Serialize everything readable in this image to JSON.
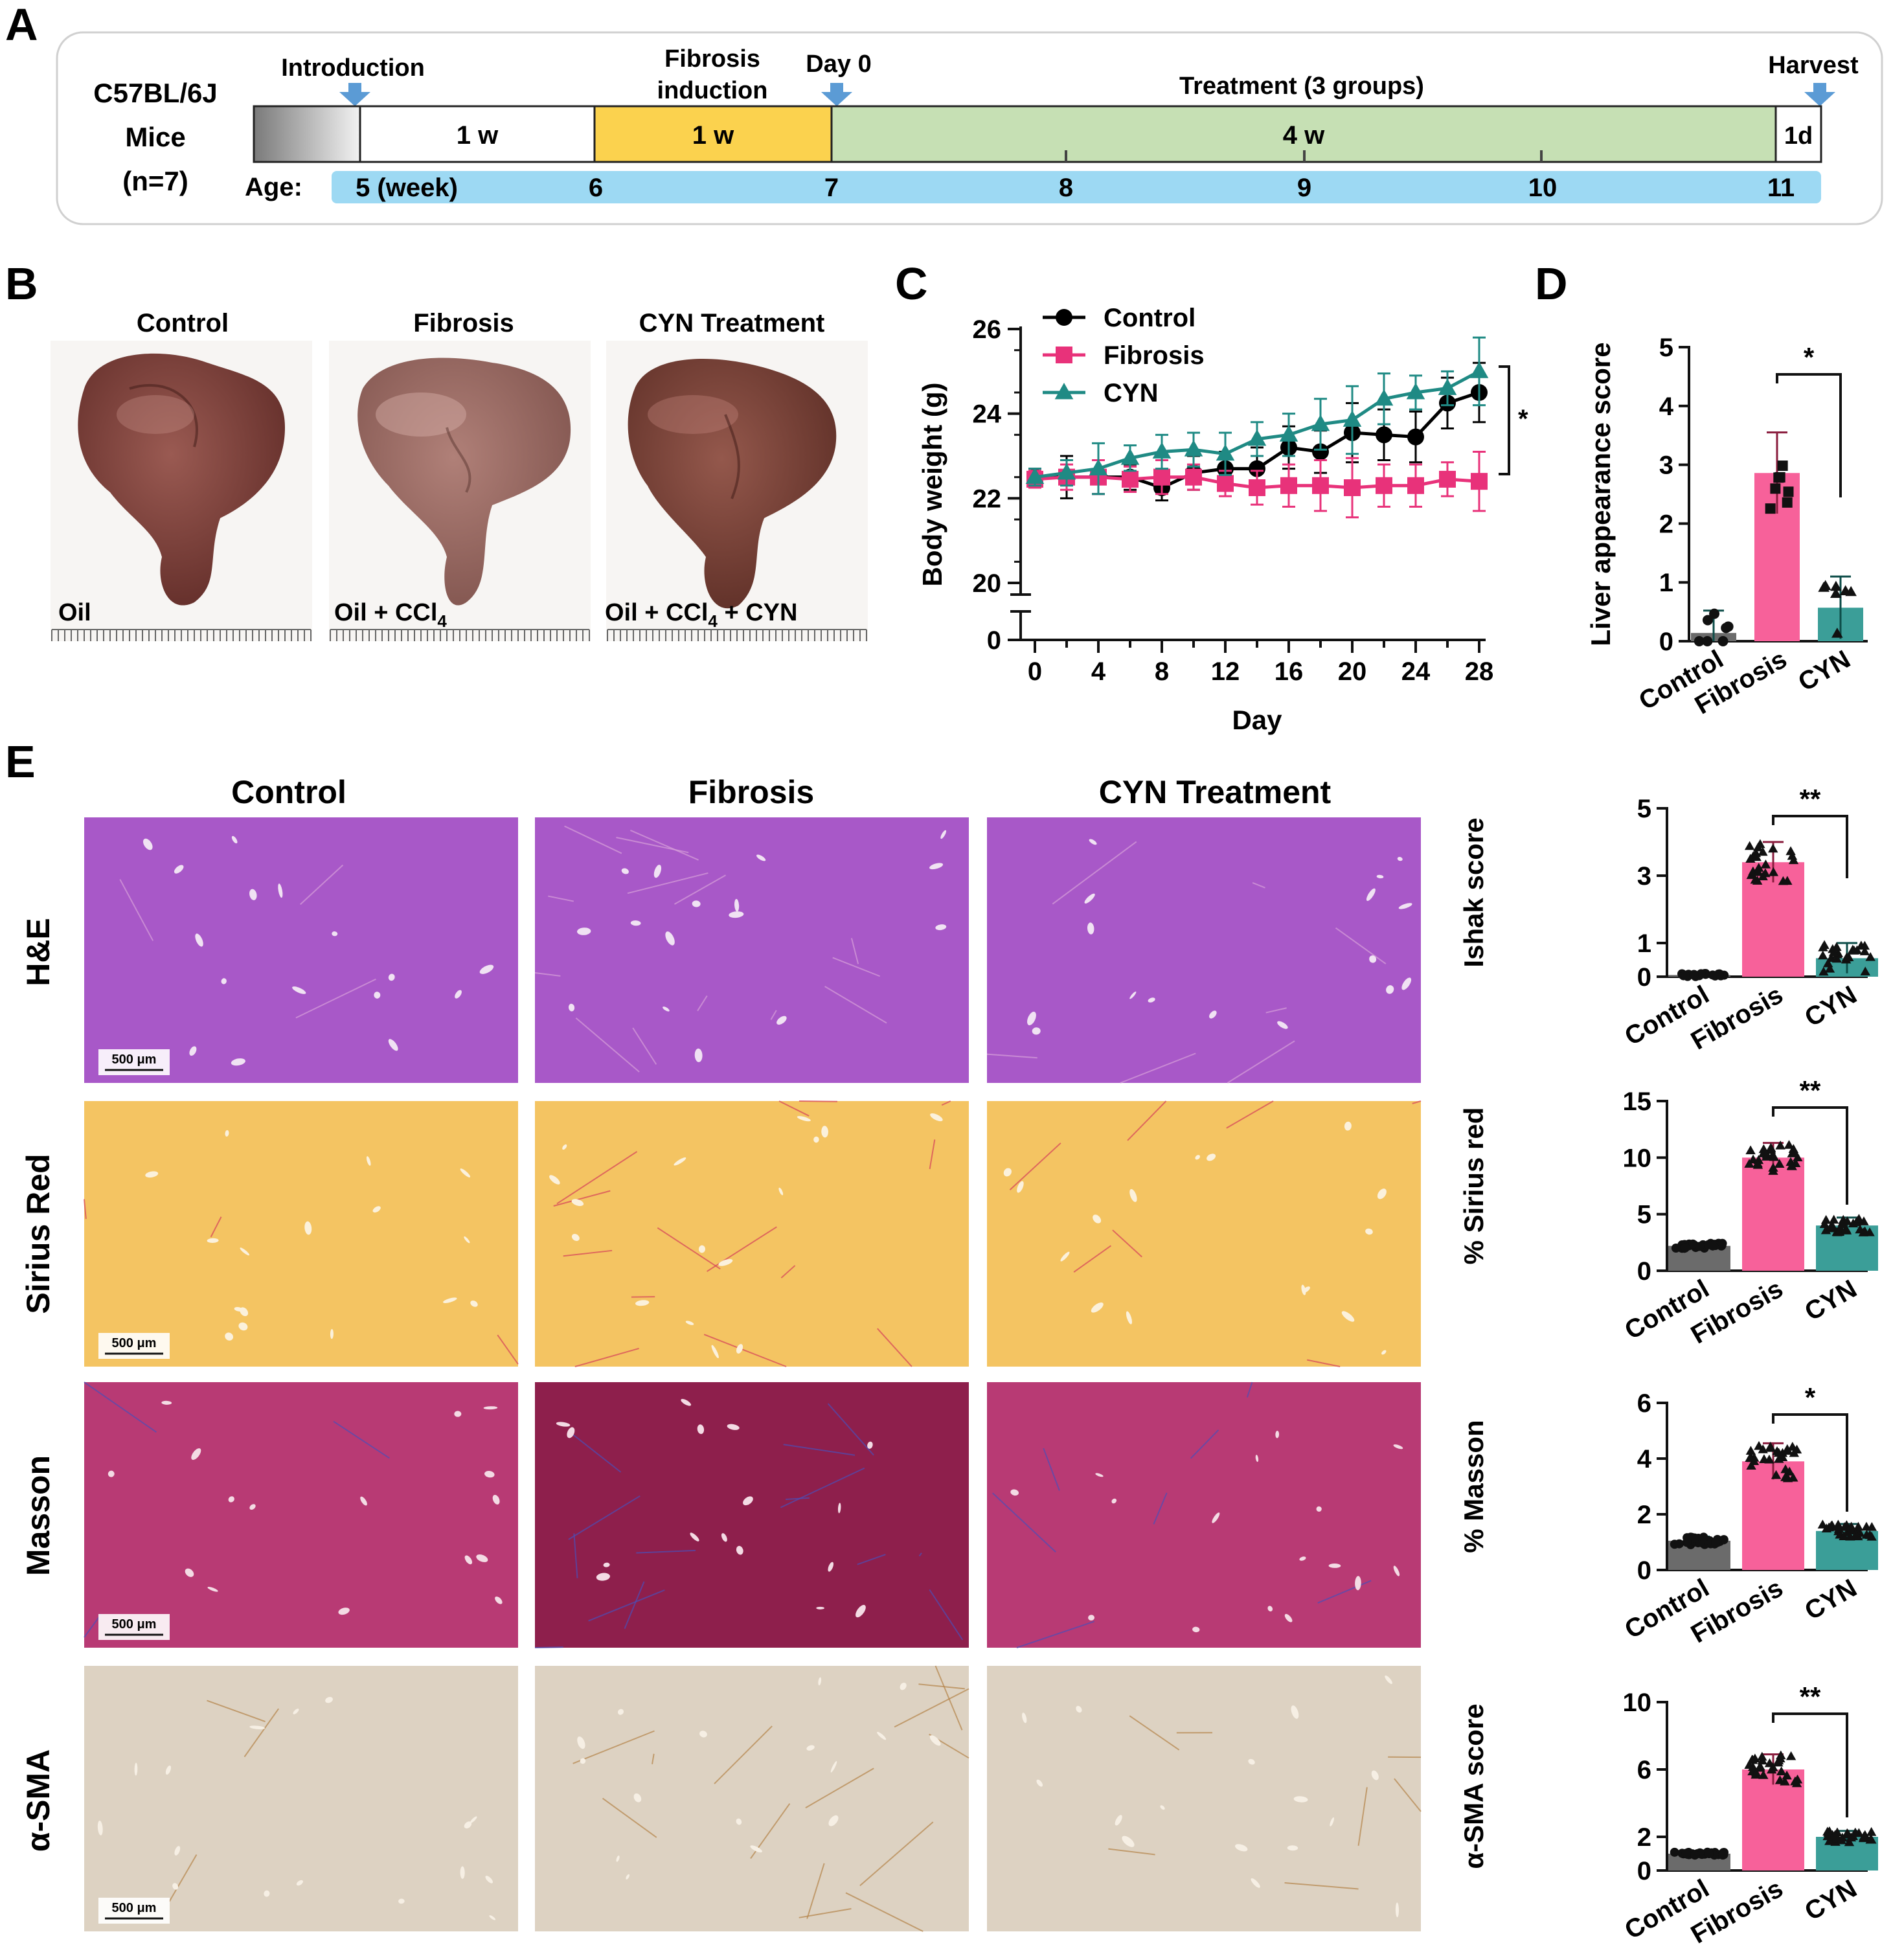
{
  "panels": {
    "a": "A",
    "b": "B",
    "c": "C",
    "d": "D",
    "e": "E"
  },
  "timeline": {
    "strain": "C57BL/6J",
    "mice": "Mice",
    "n": "(n=7)",
    "introduction": "Introduction",
    "fibrosis_l1": "Fibrosis",
    "fibrosis_l2": "induction",
    "day0": "Day 0",
    "treatment": "Treatment (3 groups)",
    "harvest": "Harvest",
    "seg1": "1 w",
    "seg2": "1 w",
    "seg3": "4 w",
    "seg4": "1d",
    "age_label": "Age:",
    "ages": [
      "5 (week)",
      "6",
      "7",
      "8",
      "9",
      "10",
      "11"
    ],
    "colors": {
      "fibrosis": "#fbd24e",
      "treatment": "#c6e0b4",
      "age": "#9dd9f3",
      "arrow": "#5b9bd5"
    }
  },
  "liver_photos": {
    "titles": [
      "Control",
      "Fibrosis",
      "CYN Treatment"
    ],
    "captions": [
      "Oil",
      "Oil + CCl",
      "Oil + CCl"
    ],
    "caption_sub": "4",
    "caption_tail": " + CYN"
  },
  "histology": {
    "columns": [
      "Control",
      "Fibrosis",
      "CYN Treatment"
    ],
    "rows": [
      "H&E",
      "Sirius Red",
      "Masson",
      "α-SMA"
    ],
    "scale_label": "500 μm",
    "colors": {
      "he": "#a858c8",
      "sirius": "#f4c462",
      "masson": "#b83a74",
      "sma": "#ddd2c2"
    }
  },
  "chart_data": [
    {
      "id": "C",
      "type": "line",
      "xlabel": "Day",
      "ylabel": "Body weight (g)",
      "xlim": [
        0,
        28
      ],
      "ylim": [
        20,
        26
      ],
      "x_ticks": [
        0,
        4,
        8,
        12,
        16,
        20,
        24,
        28
      ],
      "y_ticks": [
        20,
        22,
        24,
        26
      ],
      "y_break_label": "0",
      "legend_position": "top-left",
      "annotation": "*",
      "x": [
        0,
        2,
        4,
        6,
        8,
        10,
        12,
        14,
        16,
        18,
        20,
        22,
        24,
        26,
        28
      ],
      "series": [
        {
          "name": "Control",
          "color": "#000000",
          "marker": "circle",
          "values": [
            22.5,
            22.5,
            22.5,
            22.5,
            22.25,
            22.6,
            22.7,
            22.7,
            23.2,
            23.1,
            23.55,
            23.5,
            23.45,
            24.25,
            24.5
          ],
          "errors": [
            0.2,
            0.5,
            0.4,
            0.3,
            0.3,
            0.4,
            0.4,
            0.5,
            0.5,
            0.5,
            0.7,
            0.6,
            0.6,
            0.6,
            0.7
          ]
        },
        {
          "name": "Fibrosis",
          "color": "#e8327a",
          "marker": "square",
          "values": [
            22.45,
            22.5,
            22.5,
            22.45,
            22.5,
            22.5,
            22.35,
            22.25,
            22.3,
            22.3,
            22.25,
            22.3,
            22.3,
            22.45,
            22.4
          ],
          "errors": [
            0.2,
            0.3,
            0.4,
            0.3,
            0.4,
            0.3,
            0.3,
            0.4,
            0.5,
            0.6,
            0.7,
            0.5,
            0.5,
            0.4,
            0.7
          ]
        },
        {
          "name": "CYN",
          "color": "#1f8a84",
          "marker": "triangle",
          "values": [
            22.5,
            22.6,
            22.7,
            22.95,
            23.1,
            23.15,
            23.05,
            23.4,
            23.5,
            23.75,
            23.85,
            24.35,
            24.5,
            24.6,
            25.0
          ],
          "errors": [
            0.2,
            0.3,
            0.6,
            0.3,
            0.4,
            0.4,
            0.5,
            0.4,
            0.5,
            0.6,
            0.8,
            0.6,
            0.4,
            0.4,
            0.8
          ]
        }
      ]
    },
    {
      "id": "D",
      "type": "bar",
      "ylabel": "Liver appearance score",
      "categories": [
        "Control",
        "Fibrosis",
        "CYN"
      ],
      "values": [
        0.14,
        2.86,
        0.57
      ],
      "errors": [
        0.38,
        0.69,
        0.53
      ],
      "ylim": [
        0,
        5
      ],
      "y_ticks": [
        0,
        1,
        2,
        3,
        4,
        5
      ],
      "significance": "*",
      "colors": [
        "#6b6b6b",
        "#f7619a",
        "#3b9e98"
      ]
    },
    {
      "id": "E1",
      "type": "bar",
      "ylabel": "Ishak score",
      "categories": [
        "Control",
        "Fibrosis",
        "CYN"
      ],
      "values": [
        0.05,
        3.4,
        0.55
      ],
      "errors": [
        0.05,
        0.6,
        0.45
      ],
      "ylim": [
        0,
        5
      ],
      "y_ticks": [
        0,
        1,
        3,
        5
      ],
      "significance": "**",
      "colors": [
        "#6b6b6b",
        "#f7619a",
        "#3b9e98"
      ]
    },
    {
      "id": "E2",
      "type": "bar",
      "ylabel": "% Sirius red",
      "categories": [
        "Control",
        "Fibrosis",
        "CYN"
      ],
      "values": [
        2.2,
        10.0,
        4.0
      ],
      "errors": [
        0.25,
        1.3,
        0.7
      ],
      "ylim": [
        0,
        15
      ],
      "y_ticks": [
        0,
        5,
        10,
        15
      ],
      "significance": "**",
      "colors": [
        "#6b6b6b",
        "#f7619a",
        "#3b9e98"
      ]
    },
    {
      "id": "E3",
      "type": "bar",
      "ylabel": "% Masson",
      "categories": [
        "Control",
        "Fibrosis",
        "CYN"
      ],
      "values": [
        1.05,
        3.9,
        1.4
      ],
      "errors": [
        0.15,
        0.65,
        0.25
      ],
      "ylim": [
        0,
        6
      ],
      "y_ticks": [
        0,
        2,
        4,
        6
      ],
      "significance": "*",
      "colors": [
        "#6b6b6b",
        "#f7619a",
        "#3b9e98"
      ]
    },
    {
      "id": "E4",
      "type": "bar",
      "ylabel": "α-SMA score",
      "categories": [
        "Control",
        "Fibrosis",
        "CYN"
      ],
      "values": [
        1.0,
        6.0,
        2.0
      ],
      "errors": [
        0.1,
        0.9,
        0.35
      ],
      "ylim": [
        0,
        10
      ],
      "y_ticks": [
        0,
        2,
        6,
        10
      ],
      "significance": "**",
      "colors": [
        "#6b6b6b",
        "#f7619a",
        "#3b9e98"
      ]
    }
  ]
}
